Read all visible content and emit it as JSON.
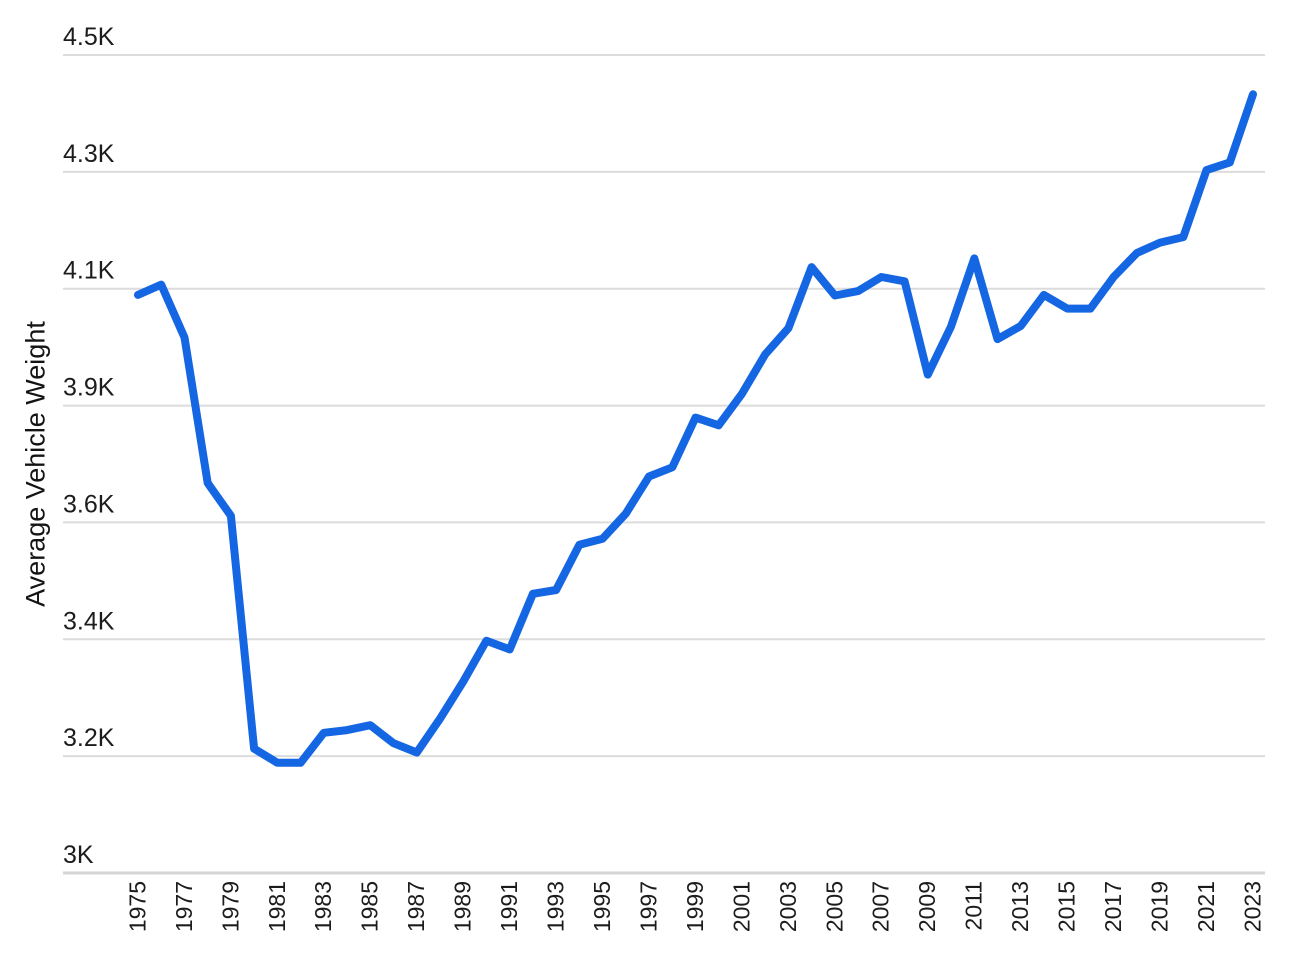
{
  "chart_data": {
    "type": "line",
    "title": "",
    "ylabel": "Average Vehicle Weight",
    "xlabel": "",
    "x": [
      1975,
      1976,
      1977,
      1978,
      1979,
      1980,
      1981,
      1982,
      1983,
      1984,
      1985,
      1986,
      1987,
      1988,
      1989,
      1990,
      1991,
      1992,
      1993,
      1994,
      1995,
      1996,
      1997,
      1998,
      1999,
      2000,
      2001,
      2002,
      2003,
      2004,
      2005,
      2006,
      2007,
      2008,
      2009,
      2010,
      2011,
      2012,
      2013,
      2014,
      2015,
      2016,
      2017,
      2018,
      2019,
      2020,
      2021,
      2022,
      2023
    ],
    "series": [
      {
        "name": "Average Vehicle Weight",
        "values": [
          4060,
          4079,
          3982,
          3715,
          3655,
          3228,
          3202,
          3202,
          3257,
          3262,
          3271,
          3238,
          3221,
          3283,
          3351,
          3426,
          3410,
          3512,
          3519,
          3602,
          3613,
          3659,
          3727,
          3744,
          3835,
          3821,
          3879,
          3951,
          3999,
          4111,
          4059,
          4067,
          4093,
          4085,
          3914,
          4002,
          4127,
          3979,
          4003,
          4060,
          4035,
          4035,
          4093,
          4137,
          4156,
          4166,
          4289,
          4303,
          4428
        ]
      }
    ],
    "ylim": [
      3000,
      4500
    ],
    "y_tick_labels": [
      "4.5K",
      "4.3K",
      "4.1K",
      "3.9K",
      "3.6K",
      "3.4K",
      "3.2K",
      "3K"
    ],
    "x_tick_labels": [
      "1975",
      "1977",
      "1979",
      "1981",
      "1983",
      "1985",
      "1987",
      "1989",
      "1991",
      "1993",
      "1995",
      "1997",
      "1999",
      "2001",
      "2003",
      "2005",
      "2007",
      "2009",
      "2011",
      "2013",
      "2015",
      "2017",
      "2019",
      "2021",
      "2023"
    ],
    "grid": "horizontal",
    "legend": "none",
    "line_color": "#1566e2",
    "grid_color": "#dcdcdc",
    "baseline_color": "#d4d4d4",
    "text_color": "#1c1c1c"
  }
}
